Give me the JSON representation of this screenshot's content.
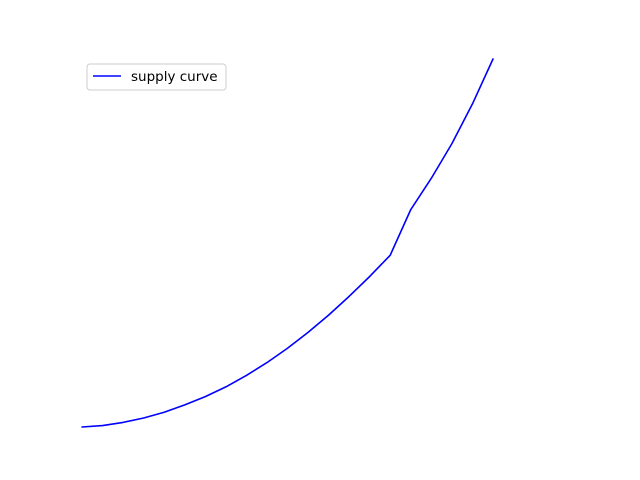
{
  "chart_data": {
    "type": "line",
    "axes_visible": false,
    "grid": false,
    "legend_placement": "upper-left",
    "xlim": [
      0,
      1
    ],
    "ylim": [
      0,
      1
    ],
    "series": [
      {
        "name": "supply curve",
        "color": "#0000ff",
        "x": [
          0,
          0.05,
          0.1,
          0.15,
          0.2,
          0.25,
          0.3,
          0.35,
          0.4,
          0.45,
          0.5,
          0.55,
          0.6,
          0.65,
          0.7,
          0.75,
          0.8,
          0.85,
          0.9,
          0.95,
          1.0
        ],
        "y": [
          0,
          0.004,
          0.0125,
          0.0245,
          0.04,
          0.06,
          0.0825,
          0.109,
          0.14,
          0.175,
          0.214,
          0.257,
          0.304,
          0.355,
          0.409,
          0.467,
          0.591,
          0.676,
          0.77,
          0.878,
          1.0
        ]
      }
    ]
  }
}
